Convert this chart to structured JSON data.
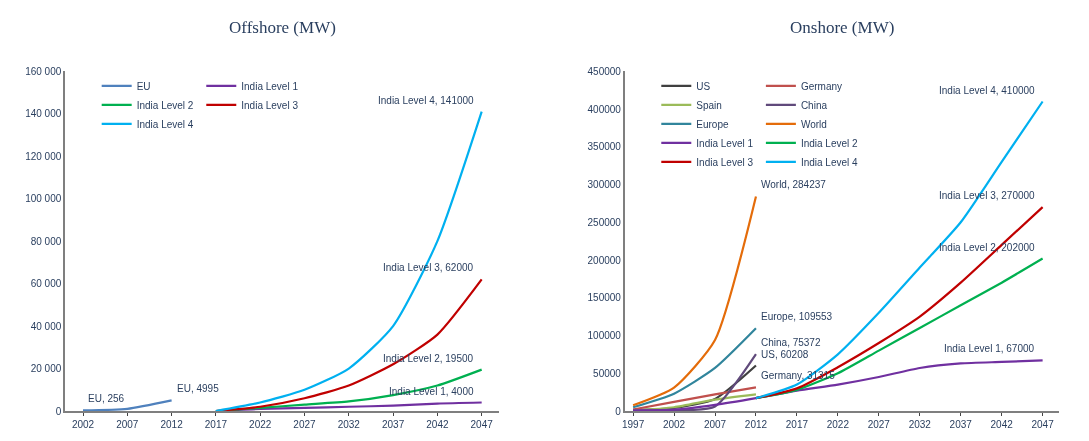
{
  "chart_data": [
    {
      "type": "line",
      "title": "Offshore (MW)",
      "legend": "top left",
      "marker": "none",
      "line_style": "solid",
      "xlim": [
        2000,
        2049
      ],
      "xticks": [
        2002,
        2007,
        2012,
        2017,
        2022,
        2027,
        2032,
        2037,
        2042,
        2047
      ],
      "ylim": [
        0,
        160000
      ],
      "yticks": [
        0,
        {
          "value": 20000,
          "label": "20 000"
        },
        {
          "value": 40000,
          "label": "40 000"
        },
        {
          "value": 60000,
          "label": "60 000"
        },
        {
          "value": 80000,
          "label": "80 000"
        },
        {
          "value": 100000,
          "label": "100 000"
        },
        {
          "value": 120000,
          "label": "120 000"
        },
        {
          "value": 140000,
          "label": "140 000"
        },
        {
          "value": 160000,
          "label": "160 000"
        }
      ],
      "series": [
        {
          "name": "EU",
          "color": "#4f81bd",
          "x": [
            2002,
            2007,
            2012
          ],
          "values": [
            256,
            1000,
            4995
          ]
        },
        {
          "name": "India Level 1",
          "color": "#7030a0",
          "x": [
            2017,
            2022,
            2027,
            2032,
            2037,
            2042,
            2047
          ],
          "values": [
            0,
            1000,
            1500,
            2000,
            2500,
            3500,
            4000
          ]
        },
        {
          "name": "India Level 2",
          "color": "#00b050",
          "x": [
            2017,
            2022,
            2027,
            2032,
            2037,
            2042,
            2047
          ],
          "values": [
            0,
            1500,
            3000,
            4500,
            7500,
            12000,
            19500
          ]
        },
        {
          "name": "India Level 3",
          "color": "#c00000",
          "x": [
            2017,
            2022,
            2027,
            2032,
            2037,
            2042,
            2047
          ],
          "values": [
            0,
            2000,
            6000,
            12000,
            22000,
            36000,
            62000
          ]
        },
        {
          "name": "India Level 4",
          "color": "#00b0f0",
          "x": [
            2017,
            2022,
            2027,
            2032,
            2037,
            2042,
            2047
          ],
          "values": [
            0,
            4000,
            10000,
            20000,
            40000,
            80000,
            141000
          ]
        }
      ],
      "annotations": [
        {
          "text": "EU, 256",
          "x": 2002,
          "y": 256
        },
        {
          "text": "EU, 4995",
          "x": 2012,
          "y": 4995
        },
        {
          "text": "India Level 1, 4000",
          "x": 2047,
          "y": 4000
        },
        {
          "text": "India Level 2, 19500",
          "x": 2047,
          "y": 19500
        },
        {
          "text": "India Level 3, 62000",
          "x": 2047,
          "y": 62000
        },
        {
          "text": "India Level 4, 141000",
          "x": 2047,
          "y": 141000
        }
      ]
    },
    {
      "type": "line",
      "title": "Onshore (MW)",
      "legend": "top left",
      "marker": "none",
      "line_style": "solid",
      "xlim": [
        1996,
        2049
      ],
      "xticks": [
        1997,
        2002,
        2007,
        2012,
        2017,
        2022,
        2027,
        2032,
        2037,
        2042,
        2047
      ],
      "ylim": [
        0,
        450000
      ],
      "yticks": [
        0,
        50000,
        100000,
        150000,
        200000,
        250000,
        300000,
        350000,
        400000,
        450000
      ],
      "series": [
        {
          "name": "US",
          "color": "#404040",
          "x": [
            1997,
            2002,
            2007,
            2012
          ],
          "values": [
            1600,
            4000,
            16000,
            60208
          ]
        },
        {
          "name": "Germany",
          "color": "#c0504d",
          "x": [
            1997,
            2002,
            2007,
            2012
          ],
          "values": [
            2000,
            12000,
            22000,
            31315
          ]
        },
        {
          "name": "Spain",
          "color": "#9bbb59",
          "x": [
            1997,
            2002,
            2007,
            2012
          ],
          "values": [
            500,
            5000,
            15000,
            22000
          ]
        },
        {
          "name": "China",
          "color": "#604a7b",
          "x": [
            1997,
            2002,
            2007,
            2012
          ],
          "values": [
            200,
            500,
            6000,
            75372
          ]
        },
        {
          "name": "Europe",
          "color": "#31859c",
          "x": [
            1997,
            2002,
            2007,
            2012
          ],
          "values": [
            5000,
            23000,
            57000,
            109553
          ]
        },
        {
          "name": "World",
          "color": "#e46c0a",
          "x": [
            1997,
            2002,
            2007,
            2012
          ],
          "values": [
            7600,
            31000,
            94000,
            284237
          ]
        },
        {
          "name": "India Level 1",
          "color": "#7030a0",
          "x": [
            1997,
            2002,
            2007,
            2012,
            2017,
            2022,
            2027,
            2032,
            2037,
            2042,
            2047
          ],
          "values": [
            900,
            1700,
            8000,
            17000,
            27000,
            35000,
            45000,
            57000,
            63000,
            65000,
            67000
          ]
        },
        {
          "name": "India Level 2",
          "color": "#00b050",
          "x": [
            2012,
            2017,
            2022,
            2027,
            2032,
            2037,
            2042,
            2047
          ],
          "values": [
            17000,
            28000,
            50000,
            80000,
            110000,
            140000,
            170000,
            202000
          ]
        },
        {
          "name": "India Level 3",
          "color": "#c00000",
          "x": [
            2012,
            2017,
            2022,
            2027,
            2032,
            2037,
            2042,
            2047
          ],
          "values": [
            17000,
            30000,
            58000,
            90000,
            125000,
            170000,
            220000,
            270000
          ]
        },
        {
          "name": "India Level 4",
          "color": "#00b0f0",
          "x": [
            2012,
            2017,
            2022,
            2027,
            2032,
            2037,
            2042,
            2047
          ],
          "values": [
            17000,
            35000,
            75000,
            130000,
            190000,
            250000,
            330000,
            410000
          ]
        }
      ],
      "annotations": [
        {
          "text": "World, 284237",
          "x": 2012,
          "y": 284237
        },
        {
          "text": "Europe, 109553",
          "x": 2012,
          "y": 109553
        },
        {
          "text": "China, 75372",
          "x": 2012,
          "y": 75372
        },
        {
          "text": "US, 60208",
          "x": 2012,
          "y": 60208
        },
        {
          "text": "Germany, 31315",
          "x": 2012,
          "y": 31315
        },
        {
          "text": "India Level 1, 67000",
          "x": 2047,
          "y": 67000
        },
        {
          "text": "India Level 2, 202000",
          "x": 2047,
          "y": 202000
        },
        {
          "text": "India Level 3, 270000",
          "x": 2047,
          "y": 270000
        },
        {
          "text": "India Level 4, 410000",
          "x": 2047,
          "y": 410000
        }
      ]
    }
  ]
}
